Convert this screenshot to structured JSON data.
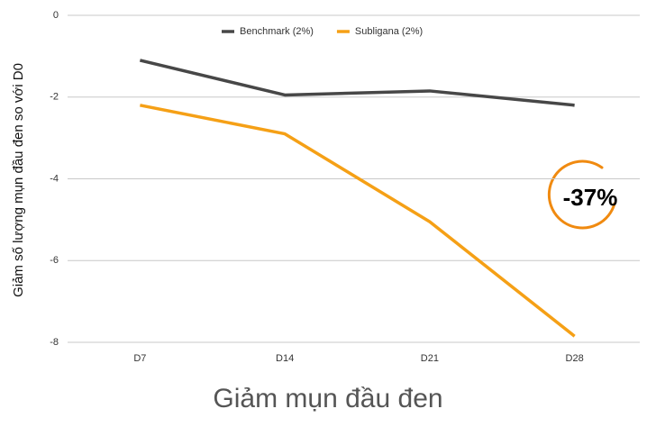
{
  "chart_data": {
    "type": "line",
    "title": "Giảm mụn đầu đen",
    "y_label": "Giảm số lượng mụn đầu đen so với D0",
    "annotation": "-37%",
    "categories": [
      "D7",
      "D14",
      "D21",
      "D28"
    ],
    "series": [
      {
        "name": "Benchmark (2%)",
        "color": "#474747",
        "values": [
          -1.1,
          -1.95,
          -1.85,
          -2.2
        ]
      },
      {
        "name": "Subligana (2%)",
        "color": "#f5a016",
        "values": [
          -2.2,
          -2.9,
          -5.05,
          -7.85
        ]
      }
    ],
    "ylim": [
      -8,
      0
    ],
    "yticks": [
      0,
      -2,
      -4,
      -6,
      -8
    ],
    "grid": true,
    "legend": "top"
  }
}
